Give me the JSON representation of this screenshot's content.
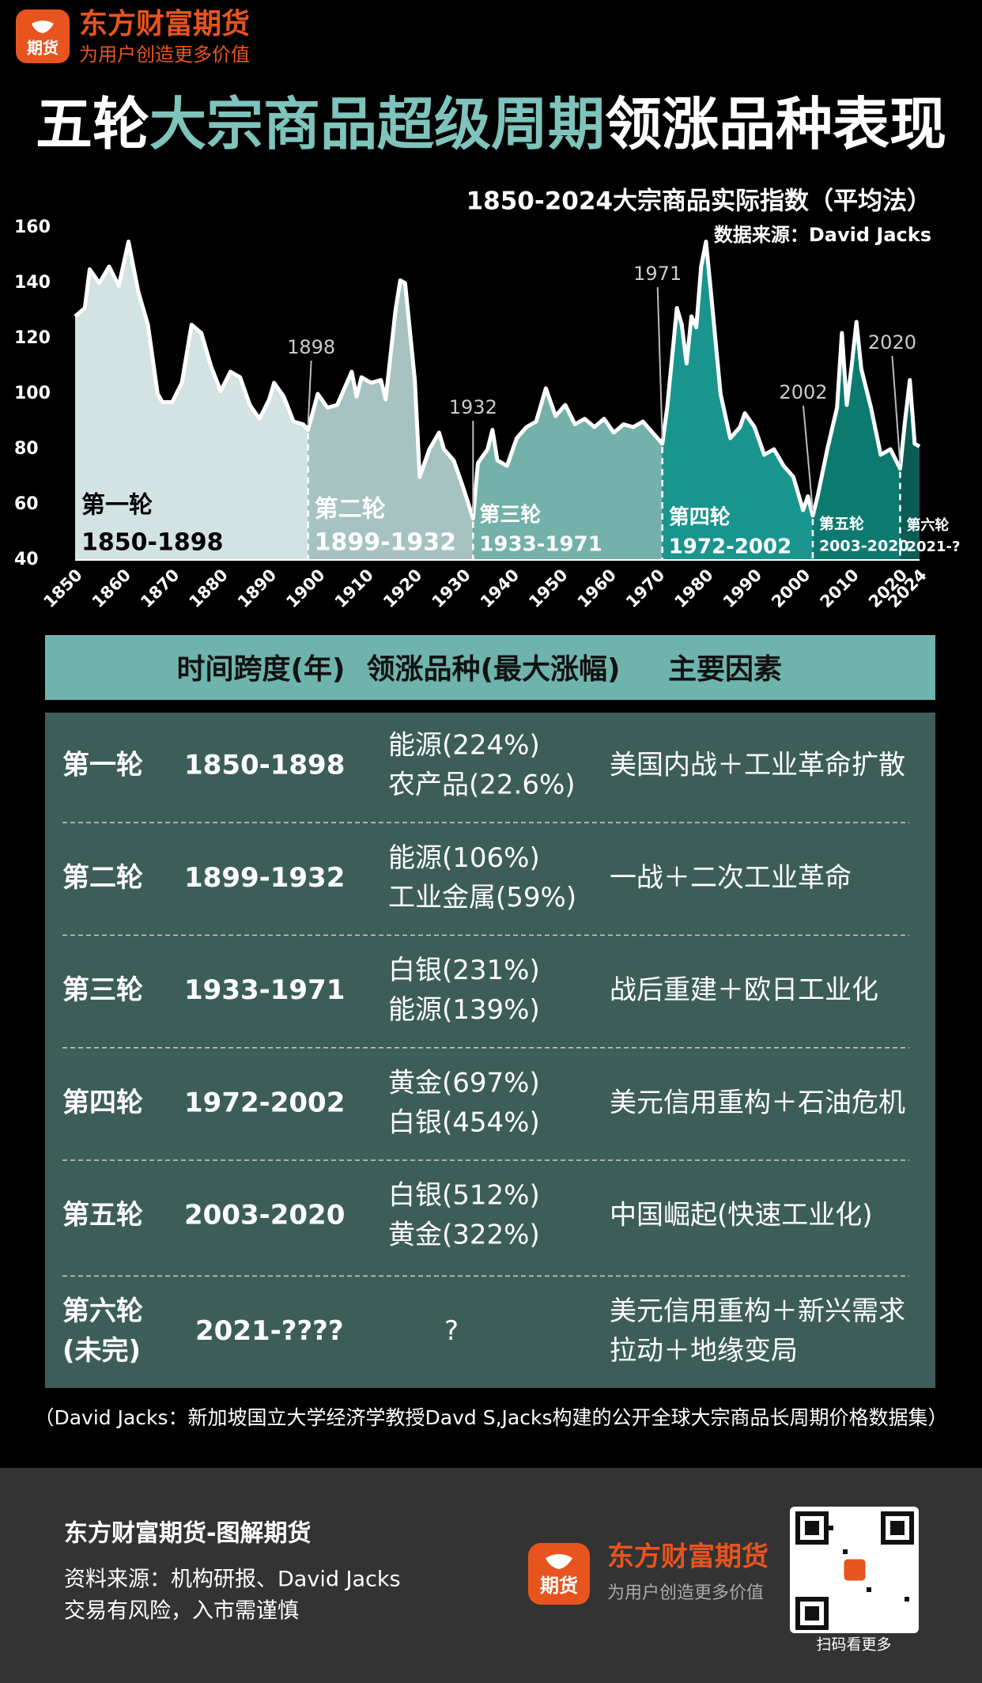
{
  "header": {
    "logo_text": "期货",
    "brand": "东方财富期货",
    "slogan": "为用户创造更多价值"
  },
  "title_parts": [
    "五轮",
    "大宗商品超级周期",
    "领涨品种表现"
  ],
  "chart_data": {
    "type": "area",
    "title": "1850-2024大宗商品实际指数（平均法）",
    "subtitle": "数据来源：David Jacks",
    "x": [
      1850,
      1852,
      1853,
      1855,
      1857,
      1859,
      1861,
      1863,
      1865,
      1867,
      1868,
      1870,
      1872,
      1874,
      1876,
      1878,
      1880,
      1882,
      1884,
      1886,
      1888,
      1890,
      1891,
      1893,
      1895,
      1897,
      1898,
      1900,
      1902,
      1904,
      1906,
      1907,
      1908,
      1909,
      1911,
      1913,
      1914,
      1916,
      1917,
      1918,
      1920,
      1921,
      1923,
      1925,
      1926,
      1928,
      1930,
      1932,
      1933,
      1935,
      1936,
      1937,
      1939,
      1941,
      1943,
      1945,
      1947,
      1949,
      1951,
      1953,
      1955,
      1957,
      1959,
      1961,
      1963,
      1965,
      1967,
      1969,
      1971,
      1972,
      1974,
      1975,
      1976,
      1977,
      1978,
      1979,
      1980,
      1981,
      1983,
      1985,
      1987,
      1988,
      1990,
      1992,
      1994,
      1996,
      1998,
      2000,
      2001,
      2002,
      2003,
      2005,
      2007,
      2008,
      2009,
      2010,
      2011,
      2012,
      2014,
      2016,
      2018,
      2020,
      2021,
      2022,
      2023,
      2024
    ],
    "values": [
      128,
      131,
      145,
      140,
      146,
      139,
      155,
      137,
      125,
      100,
      97,
      97,
      104,
      125,
      122,
      110,
      101,
      108,
      106,
      96,
      91,
      98,
      104,
      99,
      90,
      89,
      87,
      100,
      95,
      96,
      104,
      108,
      99,
      106,
      104,
      105,
      98,
      130,
      141,
      140,
      105,
      70,
      80,
      86,
      80,
      76,
      66,
      55,
      75,
      80,
      87,
      76,
      74,
      84,
      88,
      90,
      102,
      92,
      96,
      89,
      91,
      88,
      91,
      86,
      89,
      88,
      90,
      86,
      82,
      95,
      131,
      125,
      111,
      128,
      124,
      146,
      155,
      137,
      100,
      84,
      88,
      93,
      88,
      78,
      80,
      74,
      70,
      58,
      63,
      56,
      63,
      80,
      95,
      122,
      96,
      110,
      126,
      109,
      95,
      78,
      80,
      73,
      90,
      105,
      82,
      81
    ],
    "line_color": "#ffffff",
    "xlim": [
      1850,
      2024
    ],
    "ylim": [
      40,
      160
    ],
    "xticks": [
      1850,
      1860,
      1870,
      1880,
      1890,
      1900,
      1910,
      1920,
      1930,
      1940,
      1950,
      1960,
      1970,
      1980,
      1990,
      2000,
      2010,
      2020,
      2024
    ],
    "yticks": [
      40,
      60,
      80,
      100,
      120,
      140,
      160
    ],
    "grid": false,
    "marked_years": [
      1898,
      1932,
      1971,
      2002,
      2020
    ],
    "eras": [
      {
        "name": "第一轮",
        "span": "1850-1898",
        "color": "#d3e2e2"
      },
      {
        "name": "第二轮",
        "span": "1899-1932",
        "color": "#a6c3c2"
      },
      {
        "name": "第三轮",
        "span": "1933-1971",
        "color": "#74b1aa"
      },
      {
        "name": "第四轮",
        "span": "1972-2002",
        "color": "#1a958e"
      },
      {
        "name": "第五轮",
        "span": "2003-2020",
        "color": "#0d7a70"
      },
      {
        "name": "第六轮",
        "span": "2021-?",
        "color": "#0b5c55"
      }
    ]
  },
  "table": {
    "columns": [
      "时间跨度(年)",
      "领涨品种(最大涨幅)",
      "主要因素"
    ],
    "rows": [
      [
        [
          "第一轮"
        ],
        [
          "1850-1898"
        ],
        [
          "能源(224%)",
          "农产品(22.6%)"
        ],
        [
          "美国内战＋工业革命扩散"
        ]
      ],
      [
        [
          "第二轮"
        ],
        [
          "1899-1932"
        ],
        [
          "能源(106%)",
          "工业金属(59%)"
        ],
        [
          "一战＋二次工业革命"
        ]
      ],
      [
        [
          "第三轮"
        ],
        [
          "1933-1971"
        ],
        [
          "白银(231%)",
          "能源(139%)"
        ],
        [
          "战后重建＋欧日工业化"
        ]
      ],
      [
        [
          "第四轮"
        ],
        [
          "1972-2002"
        ],
        [
          "黄金(697%)",
          "白银(454%)"
        ],
        [
          "美元信用重构＋石油危机"
        ]
      ],
      [
        [
          "第五轮"
        ],
        [
          "2003-2020"
        ],
        [
          "白银(512%)",
          "黄金(322%)"
        ],
        [
          "中国崛起(快速工业化)"
        ]
      ],
      [
        [
          "第六轮",
          "(未完)"
        ],
        [
          "2021-????"
        ],
        [
          "?"
        ],
        [
          "美元信用重构＋新兴需求",
          "拉动＋地缘变局"
        ]
      ]
    ]
  },
  "note": "（David Jacks：新加坡国立大学经济学教授Davd S,Jacks构建的公开全球大宗商品长周期价格数据集）",
  "footer": {
    "title": "东方财富期货-图解期货",
    "lines": [
      "资料来源：机构研报、David Jacks",
      "交易有风险，入市需谨慎"
    ],
    "logo_text": "期货",
    "brand": "东方财富期货",
    "slogan": "为用户创造更多价值",
    "qr_caption": "扫码看更多"
  }
}
